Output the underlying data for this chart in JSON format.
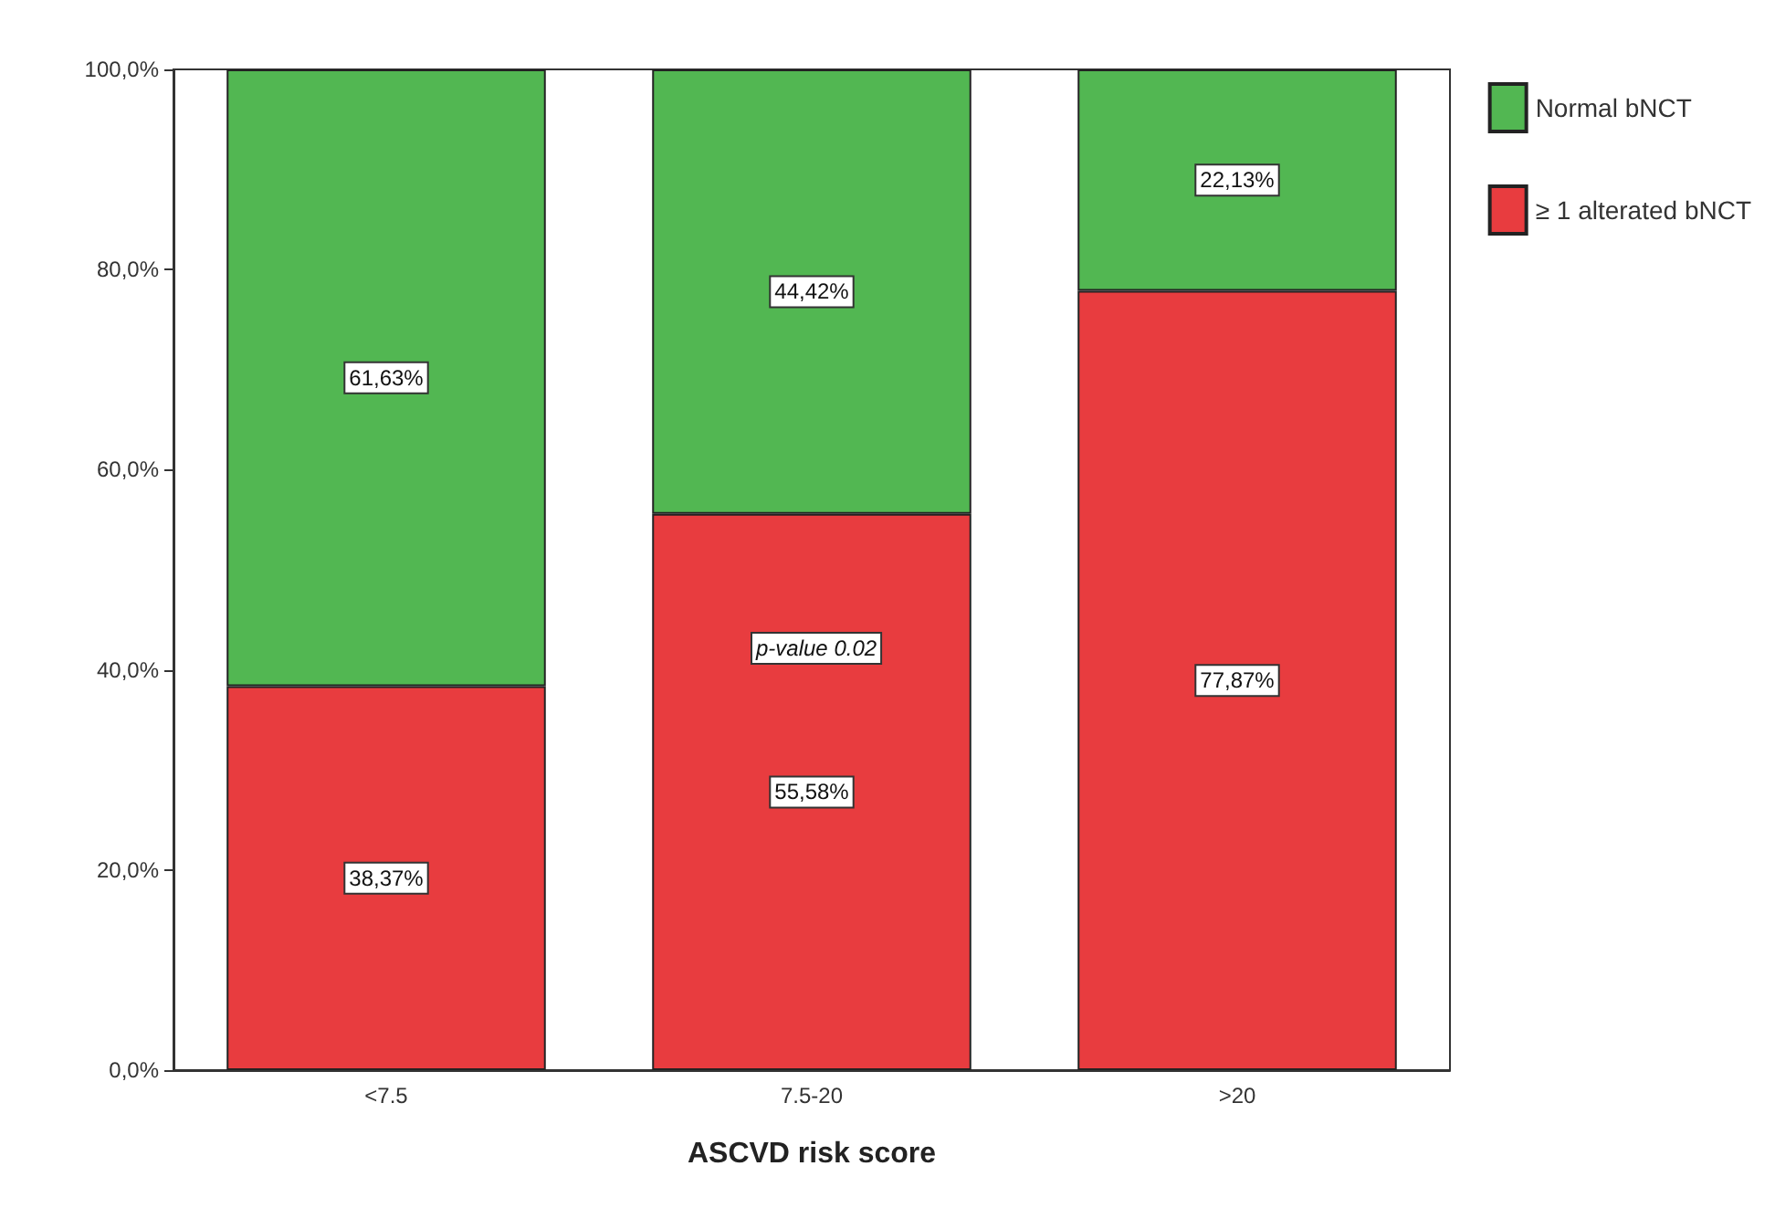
{
  "chart_data": {
    "type": "bar",
    "stacked": true,
    "xlabel": "ASCVD risk score",
    "categories": [
      "<7.5",
      "7.5-20",
      ">20"
    ],
    "series": [
      {
        "name": "≥ 1 alterated bNCT",
        "color": "#e83c3f",
        "values": [
          38.37,
          55.58,
          77.87
        ],
        "value_labels": [
          "38,37%",
          "55,58%",
          "77,87%"
        ]
      },
      {
        "name": "Normal bNCT",
        "color": "#52b752",
        "values": [
          61.63,
          44.42,
          22.13
        ],
        "value_labels": [
          "61,63%",
          "44,42%",
          "22,13%"
        ]
      }
    ],
    "ylim": [
      0,
      100
    ],
    "yticks": [
      {
        "value": 0,
        "label": "0,0%"
      },
      {
        "value": 20,
        "label": "20,0%"
      },
      {
        "value": 40,
        "label": "40,0%"
      },
      {
        "value": 60,
        "label": "60,0%"
      },
      {
        "value": 80,
        "label": "80,0%"
      },
      {
        "value": 100,
        "label": "100,0%"
      }
    ],
    "annotations": [
      "p-value 0.02"
    ],
    "legend": "top right",
    "grid": false
  }
}
